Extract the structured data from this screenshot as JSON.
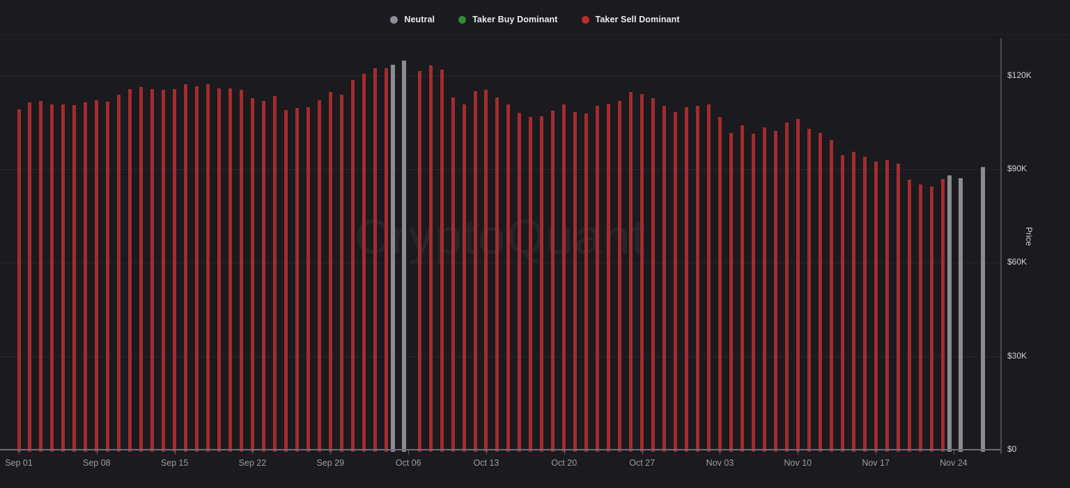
{
  "watermark": "CryptoQuant",
  "legend": {
    "items": [
      {
        "label": "Neutral",
        "color": "#8e8e99"
      },
      {
        "label": "Taker Buy Dominant",
        "color": "#2f8f33"
      },
      {
        "label": "Taker Sell Dominant",
        "color": "#bd2b2b"
      }
    ]
  },
  "colors": {
    "background": "#1a1a1f",
    "bar_sell": "#a42c2c",
    "bar_neutral": "#8b8b95",
    "grid": "#27272c",
    "axis_line": "#4b4b54",
    "baseline": "#6e6e76",
    "x_label": "#9b9ba4",
    "y_label": "#d2d2d7"
  },
  "chart_data": {
    "type": "bar",
    "title": "",
    "ylabel": "Price",
    "legend_position": "top-center",
    "grid": true,
    "ylim_k": [
      0,
      130
    ],
    "x_range": [
      "Sep 01",
      "Nov 27"
    ],
    "statuses": {
      "neutral": "Neutral",
      "buy": "Taker Buy Dominant",
      "sell": "Taker Sell Dominant"
    },
    "y_ticks": [
      {
        "value": 0,
        "label": "$0"
      },
      {
        "value": 30,
        "label": "$30K"
      },
      {
        "value": 60,
        "label": "$60K"
      },
      {
        "value": 90,
        "label": "$90K"
      },
      {
        "value": 120,
        "label": "$120K"
      }
    ],
    "x_tick_labels": [
      {
        "index": 0,
        "label": "Sep 01"
      },
      {
        "index": 7,
        "label": "Sep 08"
      },
      {
        "index": 14,
        "label": "Sep 15"
      },
      {
        "index": 21,
        "label": "Sep 22"
      },
      {
        "index": 28,
        "label": "Sep 29"
      },
      {
        "index": 35,
        "label": "Oct 06"
      },
      {
        "index": 42,
        "label": "Oct 13"
      },
      {
        "index": 49,
        "label": "Oct 20"
      },
      {
        "index": 56,
        "label": "Oct 27"
      },
      {
        "index": 63,
        "label": "Nov 03"
      },
      {
        "index": 70,
        "label": "Nov 10"
      },
      {
        "index": 77,
        "label": "Nov 17"
      },
      {
        "index": 84,
        "label": "Nov 24"
      }
    ],
    "points": [
      {
        "date": "Sep 01",
        "price_k": 109.3,
        "status": "sell"
      },
      {
        "date": "Sep 02",
        "price_k": 111.4,
        "status": "sell"
      },
      {
        "date": "Sep 03",
        "price_k": 111.8,
        "status": "sell"
      },
      {
        "date": "Sep 04",
        "price_k": 110.9,
        "status": "sell"
      },
      {
        "date": "Sep 05",
        "price_k": 110.7,
        "status": "sell"
      },
      {
        "date": "Sep 06",
        "price_k": 110.5,
        "status": "sell"
      },
      {
        "date": "Sep 07",
        "price_k": 111.4,
        "status": "sell"
      },
      {
        "date": "Sep 08",
        "price_k": 112.2,
        "status": "sell"
      },
      {
        "date": "Sep 09",
        "price_k": 111.6,
        "status": "sell"
      },
      {
        "date": "Sep 10",
        "price_k": 114.0,
        "status": "sell"
      },
      {
        "date": "Sep 11",
        "price_k": 115.6,
        "status": "sell"
      },
      {
        "date": "Sep 12",
        "price_k": 116.3,
        "status": "sell"
      },
      {
        "date": "Sep 13",
        "price_k": 115.8,
        "status": "sell"
      },
      {
        "date": "Sep 14",
        "price_k": 115.4,
        "status": "sell"
      },
      {
        "date": "Sep 15",
        "price_k": 115.6,
        "status": "sell"
      },
      {
        "date": "Sep 16",
        "price_k": 117.2,
        "status": "sell"
      },
      {
        "date": "Sep 17",
        "price_k": 116.5,
        "status": "sell"
      },
      {
        "date": "Sep 18",
        "price_k": 117.2,
        "status": "sell"
      },
      {
        "date": "Sep 19",
        "price_k": 116.0,
        "status": "sell"
      },
      {
        "date": "Sep 20",
        "price_k": 116.0,
        "status": "sell"
      },
      {
        "date": "Sep 21",
        "price_k": 115.4,
        "status": "sell"
      },
      {
        "date": "Sep 22",
        "price_k": 112.7,
        "status": "sell"
      },
      {
        "date": "Sep 23",
        "price_k": 111.8,
        "status": "sell"
      },
      {
        "date": "Sep 24",
        "price_k": 113.4,
        "status": "sell"
      },
      {
        "date": "Sep 25",
        "price_k": 109.1,
        "status": "sell"
      },
      {
        "date": "Sep 26",
        "price_k": 109.6,
        "status": "sell"
      },
      {
        "date": "Sep 27",
        "price_k": 109.8,
        "status": "sell"
      },
      {
        "date": "Sep 28",
        "price_k": 112.2,
        "status": "sell"
      },
      {
        "date": "Sep 29",
        "price_k": 114.7,
        "status": "sell"
      },
      {
        "date": "Sep 30",
        "price_k": 114.0,
        "status": "sell"
      },
      {
        "date": "Oct 01",
        "price_k": 118.5,
        "status": "sell"
      },
      {
        "date": "Oct 02",
        "price_k": 120.7,
        "status": "sell"
      },
      {
        "date": "Oct 03",
        "price_k": 122.3,
        "status": "sell"
      },
      {
        "date": "Oct 04",
        "price_k": 122.5,
        "status": "sell"
      },
      {
        "date": "Oct 05",
        "price_k": 123.6,
        "status": "neutral"
      },
      {
        "date": "Oct 06",
        "price_k": 124.8,
        "status": "neutral"
      },
      {
        "date": "Oct 07",
        "price_k": 121.4,
        "status": "sell"
      },
      {
        "date": "Oct 08",
        "price_k": 123.4,
        "status": "sell"
      },
      {
        "date": "Oct 09",
        "price_k": 121.9,
        "status": "sell"
      },
      {
        "date": "Oct 10",
        "price_k": 113.1,
        "status": "sell"
      },
      {
        "date": "Oct 11",
        "price_k": 110.9,
        "status": "sell"
      },
      {
        "date": "Oct 12",
        "price_k": 115.1,
        "status": "sell"
      },
      {
        "date": "Oct 13",
        "price_k": 115.4,
        "status": "sell"
      },
      {
        "date": "Oct 14",
        "price_k": 113.1,
        "status": "sell"
      },
      {
        "date": "Oct 15",
        "price_k": 110.9,
        "status": "sell"
      },
      {
        "date": "Oct 16",
        "price_k": 108.2,
        "status": "sell"
      },
      {
        "date": "Oct 17",
        "price_k": 106.7,
        "status": "sell"
      },
      {
        "date": "Oct 18",
        "price_k": 107.1,
        "status": "sell"
      },
      {
        "date": "Oct 19",
        "price_k": 108.7,
        "status": "sell"
      },
      {
        "date": "Oct 20",
        "price_k": 110.7,
        "status": "sell"
      },
      {
        "date": "Oct 21",
        "price_k": 108.4,
        "status": "sell"
      },
      {
        "date": "Oct 22",
        "price_k": 107.8,
        "status": "sell"
      },
      {
        "date": "Oct 23",
        "price_k": 110.4,
        "status": "sell"
      },
      {
        "date": "Oct 24",
        "price_k": 111.1,
        "status": "sell"
      },
      {
        "date": "Oct 25",
        "price_k": 111.8,
        "status": "sell"
      },
      {
        "date": "Oct 26",
        "price_k": 114.7,
        "status": "sell"
      },
      {
        "date": "Oct 27",
        "price_k": 114.2,
        "status": "sell"
      },
      {
        "date": "Oct 28",
        "price_k": 112.9,
        "status": "sell"
      },
      {
        "date": "Oct 29",
        "price_k": 110.4,
        "status": "sell"
      },
      {
        "date": "Oct 30",
        "price_k": 108.4,
        "status": "sell"
      },
      {
        "date": "Oct 31",
        "price_k": 109.8,
        "status": "sell"
      },
      {
        "date": "Nov 01",
        "price_k": 110.4,
        "status": "sell"
      },
      {
        "date": "Nov 02",
        "price_k": 110.7,
        "status": "sell"
      },
      {
        "date": "Nov 03",
        "price_k": 106.7,
        "status": "sell"
      },
      {
        "date": "Nov 04",
        "price_k": 101.7,
        "status": "sell"
      },
      {
        "date": "Nov 05",
        "price_k": 104.0,
        "status": "sell"
      },
      {
        "date": "Nov 06",
        "price_k": 101.5,
        "status": "sell"
      },
      {
        "date": "Nov 07",
        "price_k": 103.5,
        "status": "sell"
      },
      {
        "date": "Nov 08",
        "price_k": 102.4,
        "status": "sell"
      },
      {
        "date": "Nov 09",
        "price_k": 104.9,
        "status": "sell"
      },
      {
        "date": "Nov 10",
        "price_k": 106.0,
        "status": "sell"
      },
      {
        "date": "Nov 11",
        "price_k": 102.9,
        "status": "sell"
      },
      {
        "date": "Nov 12",
        "price_k": 101.7,
        "status": "sell"
      },
      {
        "date": "Nov 13",
        "price_k": 99.5,
        "status": "sell"
      },
      {
        "date": "Nov 14",
        "price_k": 94.4,
        "status": "sell"
      },
      {
        "date": "Nov 15",
        "price_k": 95.7,
        "status": "sell"
      },
      {
        "date": "Nov 16",
        "price_k": 94.1,
        "status": "sell"
      },
      {
        "date": "Nov 17",
        "price_k": 92.4,
        "status": "sell"
      },
      {
        "date": "Nov 18",
        "price_k": 93.0,
        "status": "sell"
      },
      {
        "date": "Nov 19",
        "price_k": 91.7,
        "status": "sell"
      },
      {
        "date": "Nov 20",
        "price_k": 86.6,
        "status": "sell"
      },
      {
        "date": "Nov 21",
        "price_k": 85.0,
        "status": "sell"
      },
      {
        "date": "Nov 22",
        "price_k": 84.5,
        "status": "sell"
      },
      {
        "date": "Nov 23",
        "price_k": 86.8,
        "status": "sell"
      },
      {
        "date": "Nov 24",
        "price_k": 88.1,
        "status": "neutral"
      },
      {
        "date": "Nov 25",
        "price_k": 87.2,
        "status": "neutral"
      },
      {
        "date": "Nov 26",
        "price_k": null,
        "status": "none"
      },
      {
        "date": "Nov 27",
        "price_k": 90.6,
        "status": "neutral"
      }
    ]
  }
}
